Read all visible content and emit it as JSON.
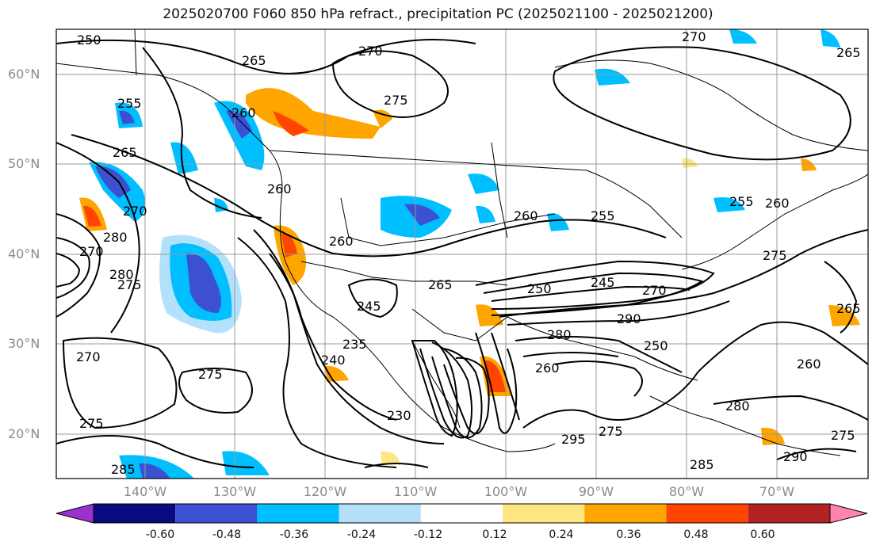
{
  "title": "2025020700 F060 850 hPa refract., precipitation PC (2025021100 - 2025021200)",
  "lat_labels": [
    "60°N",
    "50°N",
    "40°N",
    "30°N",
    "20°N"
  ],
  "lon_labels": [
    "140°W",
    "130°W",
    "120°W",
    "110°W",
    "100°W",
    "90°W",
    "80°W",
    "70°W"
  ],
  "colorbar": {
    "ticks": [
      "-0.60",
      "-0.48",
      "-0.36",
      "-0.24",
      "-0.12",
      "0.12",
      "0.24",
      "0.36",
      "0.48",
      "0.60"
    ],
    "colors": [
      "#9b32cf",
      "#0a0a80",
      "#3c50d2",
      "#00bfff",
      "#b3e0fb",
      "#ffffff",
      "#ffe680",
      "#ffa500",
      "#ff4500",
      "#b22222",
      "#ff85b0"
    ]
  },
  "contour_labels": [
    "250",
    "265",
    "270",
    "275",
    "270",
    "265",
    "255",
    "260",
    "265",
    "260",
    "260",
    "270",
    "280",
    "270",
    "275",
    "280",
    "245",
    "235",
    "240",
    "265",
    "250",
    "245",
    "270",
    "290",
    "280",
    "260",
    "255",
    "250",
    "280",
    "295",
    "275",
    "285",
    "290",
    "275",
    "265",
    "260",
    "230",
    "270",
    "275",
    "285",
    "275",
    "260",
    "260",
    "255",
    "275"
  ]
}
